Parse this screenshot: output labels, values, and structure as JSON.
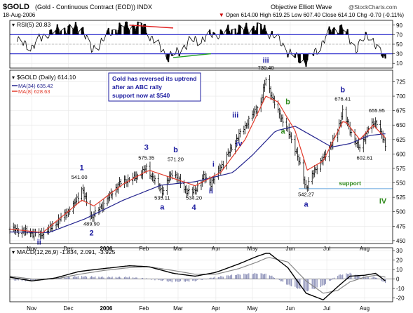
{
  "header": {
    "symbol": "$GOLD",
    "description": "(Gold - Continuous Contract (EOD)) INDX",
    "date": "18-Aug-2006",
    "credit_left": "Objective Elliott Wave",
    "credit_right": "@StockCharts.com",
    "stats": "Open 614.00  High 619.25  Low 607.40  Close 614.10  Chg -0.70 (-0.11%)",
    "stats_marker": "▼"
  },
  "annotation_box": {
    "lines": [
      "Gold has reversed its uptrend",
      "after an ABC rally",
      "support now at $540"
    ]
  },
  "colors": {
    "price_bars": "#000000",
    "ma_long": "#23238e",
    "ma_short": "#e23a2a",
    "accent_blue": "#1c1ca0",
    "accent_green": "#2f8a1c",
    "support_line": "#9cc6ea",
    "rsi_fill": "#000000",
    "rsi_guides": "#3a3ad0",
    "macd_line": "#000000",
    "macd_signal": "#888888",
    "histogram": "#8b8fb8"
  },
  "chart_data": [
    {
      "type": "line",
      "panel": "rsi",
      "legend": "RSI(5) 20.83",
      "y_ticks": [
        10,
        30,
        50,
        70,
        90
      ],
      "ylim": [
        0,
        100
      ],
      "guides": [
        30,
        70
      ],
      "x": [
        "2005-10-20",
        "2005-11-01",
        "2005-11-15",
        "2005-12-01",
        "2005-12-12",
        "2005-12-20",
        "2006-01-02",
        "2006-01-15",
        "2006-02-01",
        "2006-02-10",
        "2006-02-20",
        "2006-03-01",
        "2006-03-10",
        "2006-03-20",
        "2006-04-01",
        "2006-04-15",
        "2006-05-01",
        "2006-05-12",
        "2006-05-22",
        "2006-06-01",
        "2006-06-14",
        "2006-06-25",
        "2006-07-05",
        "2006-07-14",
        "2006-07-25",
        "2006-08-05",
        "2006-08-12",
        "2006-08-18"
      ],
      "values": [
        55,
        45,
        75,
        82,
        88,
        35,
        70,
        90,
        88,
        55,
        25,
        32,
        55,
        60,
        72,
        80,
        85,
        82,
        60,
        30,
        12,
        45,
        80,
        85,
        40,
        75,
        35,
        21
      ],
      "trendlines": [
        {
          "color": "red",
          "from": [
            "2006-01-20",
            90
          ],
          "to": [
            "2006-02-25",
            84
          ]
        },
        {
          "color": "green",
          "from": [
            "2006-02-25",
            22
          ],
          "to": [
            "2006-03-28",
            30
          ]
        }
      ]
    },
    {
      "type": "ohlc",
      "panel": "price",
      "legend": [
        "$GOLD (Daily) 614.10",
        "MA(34) 635.42",
        "MA(8) 628.63"
      ],
      "y_ticks": [
        450,
        475,
        500,
        525,
        550,
        575,
        600,
        625,
        650,
        675,
        700,
        725
      ],
      "ylim": [
        445,
        745
      ],
      "x_ticks": [
        "Nov",
        "Dec",
        "2006",
        "Feb",
        "Mar",
        "Apr",
        "May",
        "Jun",
        "Jul",
        "Aug"
      ],
      "x_tick_dates": [
        "2005-11-01",
        "2005-12-01",
        "2006-01-01",
        "2006-02-01",
        "2006-03-01",
        "2006-04-01",
        "2006-05-01",
        "2006-06-01",
        "2006-07-01",
        "2006-08-01"
      ],
      "xlim": [
        "2005-10-14",
        "2006-08-24"
      ],
      "price_path": {
        "dates": [
          "2005-10-14",
          "2005-10-26",
          "2005-11-08",
          "2005-11-20",
          "2005-12-05",
          "2005-12-12",
          "2005-12-20",
          "2005-12-30",
          "2006-01-12",
          "2006-01-25",
          "2006-02-03",
          "2006-02-16",
          "2006-02-25",
          "2006-03-06",
          "2006-03-14",
          "2006-03-22",
          "2006-03-28",
          "2006-04-10",
          "2006-04-20",
          "2006-05-01",
          "2006-05-08",
          "2006-05-12",
          "2006-05-20",
          "2006-05-28",
          "2006-06-05",
          "2006-06-14",
          "2006-06-22",
          "2006-06-30",
          "2006-07-10",
          "2006-07-14",
          "2006-07-20",
          "2006-07-28",
          "2006-08-04",
          "2006-08-11",
          "2006-08-18"
        ],
        "close": [
          470,
          466,
          460,
          478,
          510,
          541,
          490,
          514,
          549,
          560,
          575,
          535,
          571,
          538,
          534,
          560,
          549,
          596,
          632,
          668,
          690,
          730,
          680,
          650,
          610,
          542,
          575,
          598,
          640,
          676,
          640,
          608,
          645,
          656,
          614
        ]
      },
      "ma34": {
        "dates": [
          "2005-10-14",
          "2005-11-15",
          "2005-12-15",
          "2006-01-15",
          "2006-02-15",
          "2006-03-15",
          "2006-04-15",
          "2006-05-01",
          "2006-05-20",
          "2006-06-05",
          "2006-06-20",
          "2006-07-05",
          "2006-07-20",
          "2006-08-05",
          "2006-08-18"
        ],
        "values": [
          465,
          464,
          488,
          520,
          546,
          552,
          568,
          598,
          640,
          648,
          630,
          612,
          618,
          632,
          635
        ]
      },
      "ma8": {
        "dates": [
          "2005-10-14",
          "2005-11-10",
          "2005-12-12",
          "2005-12-22",
          "2006-01-15",
          "2006-02-05",
          "2006-02-22",
          "2006-03-15",
          "2006-04-05",
          "2006-04-25",
          "2006-05-12",
          "2006-05-22",
          "2006-06-05",
          "2006-06-15",
          "2006-06-28",
          "2006-07-15",
          "2006-07-28",
          "2006-08-08",
          "2006-08-18"
        ],
        "values": [
          470,
          464,
          520,
          510,
          548,
          572,
          560,
          545,
          568,
          625,
          700,
          690,
          640,
          572,
          588,
          660,
          625,
          650,
          628
        ]
      },
      "support_level": 540,
      "support_range": [
        "2006-06-08",
        "2006-08-24"
      ],
      "support_label": "support",
      "price_labels": [
        {
          "text": "541.00",
          "x": "2005-12-10",
          "y": 557
        },
        {
          "text": "489.90",
          "x": "2005-12-20",
          "y": 476
        },
        {
          "text": "575.35",
          "x": "2006-02-03",
          "y": 590
        },
        {
          "text": "535.11",
          "x": "2006-02-16",
          "y": 521
        },
        {
          "text": "571.20",
          "x": "2006-02-27",
          "y": 588
        },
        {
          "text": "534.20",
          "x": "2006-03-14",
          "y": 521
        },
        {
          "text": "730.40",
          "x": "2006-05-12",
          "y": 746
        },
        {
          "text": "542.27",
          "x": "2006-06-14",
          "y": 527
        },
        {
          "text": "676.41",
          "x": "2006-07-14",
          "y": 692
        },
        {
          "text": "602.61",
          "x": "2006-08-01",
          "y": 590
        },
        {
          "text": "655.95",
          "x": "2006-08-11",
          "y": 672
        }
      ],
      "wave_labels": [
        {
          "text": "ii",
          "x": "2005-11-07",
          "y": 443,
          "color": "blue"
        },
        {
          "text": "1",
          "x": "2005-12-12",
          "y": 572,
          "color": "blue"
        },
        {
          "text": "2",
          "x": "2005-12-20",
          "y": 459,
          "color": "blue"
        },
        {
          "text": "3",
          "x": "2006-02-03",
          "y": 607,
          "color": "blue"
        },
        {
          "text": "a",
          "x": "2006-02-16",
          "y": 504,
          "color": "blue"
        },
        {
          "text": "b",
          "x": "2006-02-27",
          "y": 603,
          "color": "blue"
        },
        {
          "text": "4",
          "x": "2006-03-14",
          "y": 503,
          "color": "blue"
        },
        {
          "text": "i",
          "x": "2006-03-30",
          "y": 578,
          "color": "blue"
        },
        {
          "text": "ii",
          "x": "2006-03-28",
          "y": 532,
          "color": "blue"
        },
        {
          "text": "iii",
          "x": "2006-04-17",
          "y": 663,
          "color": "blue"
        },
        {
          "text": "iv",
          "x": "2006-04-20",
          "y": 614,
          "color": "blue"
        },
        {
          "text": "iii",
          "x": "2006-05-12",
          "y": 758,
          "color": "blue"
        },
        {
          "text": "b",
          "x": "2006-05-30",
          "y": 686,
          "color": "green"
        },
        {
          "text": "a",
          "x": "2006-05-26",
          "y": 635,
          "color": "green"
        },
        {
          "text": "a",
          "x": "2006-06-14",
          "y": 509,
          "color": "blue"
        },
        {
          "text": "b",
          "x": "2006-07-14",
          "y": 707,
          "color": "blue"
        },
        {
          "text": "IV",
          "x": "2006-08-16",
          "y": 514,
          "color": "green"
        }
      ]
    },
    {
      "type": "line",
      "panel": "macd",
      "legend": "MACD(12,26,9) -1.834, 2.091, -3.925",
      "y_ticks": [
        -20,
        -10,
        0,
        10,
        20,
        30
      ],
      "ylim": [
        -24,
        33
      ],
      "x": [
        "2005-10-14",
        "2005-11-01",
        "2005-11-20",
        "2005-12-10",
        "2005-12-30",
        "2006-01-20",
        "2006-02-05",
        "2006-02-25",
        "2006-03-15",
        "2006-04-01",
        "2006-04-20",
        "2006-05-05",
        "2006-05-14",
        "2006-05-30",
        "2006-06-14",
        "2006-06-28",
        "2006-07-10",
        "2006-07-20",
        "2006-08-01",
        "2006-08-10",
        "2006-08-18"
      ],
      "series": [
        {
          "name": "MACD",
          "values": [
            2,
            -2,
            1,
            8,
            11,
            14,
            13,
            6,
            3,
            7,
            16,
            24,
            28,
            12,
            -15,
            -22,
            -8,
            3,
            4,
            6,
            -2
          ]
        },
        {
          "name": "Signal",
          "values": [
            3,
            0,
            0,
            5,
            9,
            12,
            13,
            9,
            5,
            5,
            11,
            18,
            23,
            18,
            -2,
            -15,
            -12,
            -3,
            2,
            4,
            2
          ]
        }
      ],
      "histogram_values": [
        -1,
        -2,
        1,
        3,
        2,
        2,
        0,
        -3,
        -2,
        2,
        5,
        6,
        5,
        -6,
        -13,
        -7,
        4,
        6,
        2,
        2,
        -4
      ]
    }
  ]
}
